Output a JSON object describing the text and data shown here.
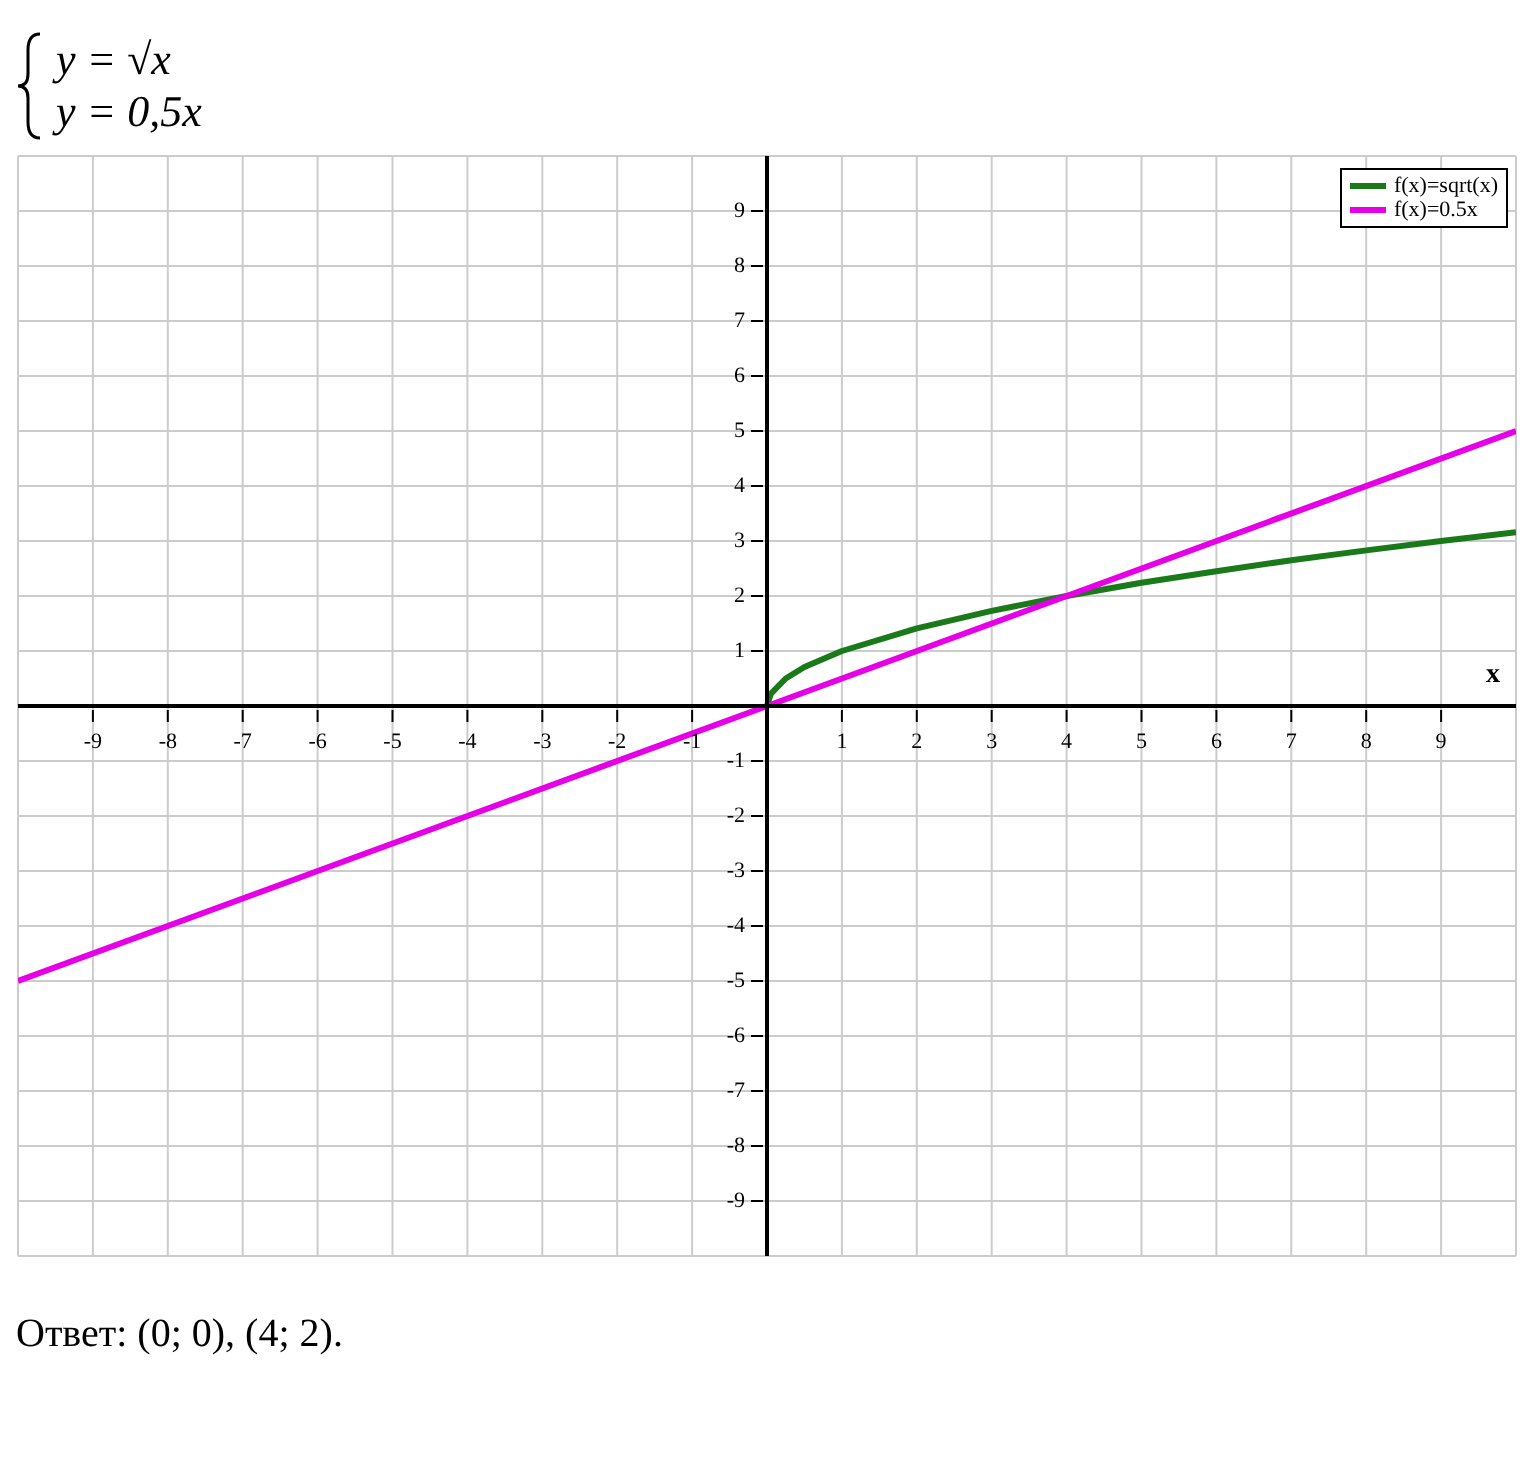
{
  "chart_data": {
    "type": "line",
    "title": "y = √x",
    "subtitle": "y = 0,5x",
    "xlabel": "x",
    "xlim": [
      -10,
      10
    ],
    "ylim": [
      -10,
      10
    ],
    "xticks": [
      -9,
      -8,
      -7,
      -6,
      -5,
      -4,
      -3,
      -2,
      -1,
      1,
      2,
      3,
      4,
      5,
      6,
      7,
      8,
      9
    ],
    "yticks": [
      -9,
      -8,
      -7,
      -6,
      -5,
      -4,
      -3,
      -2,
      -1,
      1,
      2,
      3,
      4,
      5,
      6,
      7,
      8,
      9
    ],
    "grid": true,
    "legend": "top right",
    "marker": "none",
    "line_style": "solid",
    "series": [
      {
        "name": "f(x)=sqrt(x)",
        "color": "#1a7a1a",
        "x": [
          0,
          0.05,
          0.25,
          0.5,
          1,
          2,
          3,
          4,
          5,
          6,
          7,
          8,
          9,
          10
        ],
        "values": [
          0,
          0.22,
          0.5,
          0.71,
          1,
          1.41,
          1.73,
          2,
          2.24,
          2.45,
          2.65,
          2.83,
          3,
          3.16
        ]
      },
      {
        "name": "f(x)=0.5x",
        "color": "#e600e6",
        "x": [
          -10,
          10
        ],
        "values": [
          -5,
          5
        ]
      }
    ],
    "annotations": [
      "Ответ: (0; 0), (4; 2)."
    ]
  }
}
